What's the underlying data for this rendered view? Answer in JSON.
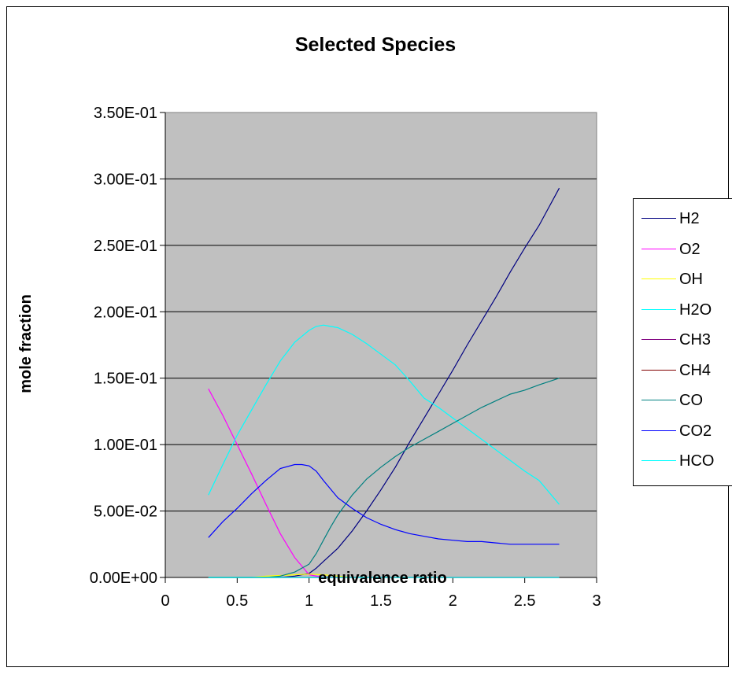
{
  "chart_data": {
    "type": "line",
    "title": "Selected Species",
    "xlabel": "equivalence ratio",
    "ylabel": "mole fraction",
    "xlim": [
      0,
      3
    ],
    "ylim": [
      0,
      0.35
    ],
    "x_ticks": [
      0,
      0.5,
      1,
      1.5,
      2,
      2.5,
      3
    ],
    "x_tick_labels": [
      "0",
      "0.5",
      "1",
      "1.5",
      "2",
      "2.5",
      "3"
    ],
    "y_ticks": [
      0,
      0.05,
      0.1,
      0.15,
      0.2,
      0.25,
      0.3,
      0.35
    ],
    "y_tick_labels": [
      "0.00E+00",
      "5.00E-02",
      "1.00E-01",
      "1.50E-01",
      "2.00E-01",
      "2.50E-01",
      "3.00E-01",
      "3.50E-01"
    ],
    "grid": "horizontal major",
    "plot_background": "#c0c0c0",
    "legend_position": "right",
    "series": [
      {
        "name": "H2",
        "color": "#000080",
        "x": [
          0.3,
          0.6,
          0.8,
          0.9,
          1.0,
          1.05,
          1.1,
          1.2,
          1.3,
          1.4,
          1.5,
          1.6,
          1.7,
          1.8,
          1.9,
          2.0,
          2.1,
          2.2,
          2.3,
          2.4,
          2.5,
          2.6,
          2.74
        ],
        "y": [
          0.0,
          0.0,
          0.0,
          0.001,
          0.003,
          0.007,
          0.012,
          0.022,
          0.035,
          0.05,
          0.066,
          0.083,
          0.102,
          0.12,
          0.138,
          0.156,
          0.175,
          0.193,
          0.211,
          0.23,
          0.248,
          0.265,
          0.293
        ]
      },
      {
        "name": "O2",
        "color": "#ff00ff",
        "x": [
          0.3,
          0.4,
          0.5,
          0.6,
          0.7,
          0.8,
          0.9,
          1.0,
          1.1,
          1.5,
          2.0,
          2.74
        ],
        "y": [
          0.142,
          0.122,
          0.1,
          0.078,
          0.055,
          0.033,
          0.015,
          0.002,
          0.0,
          0.0,
          0.0,
          0.0
        ]
      },
      {
        "name": "OH",
        "color": "#ffff00",
        "x": [
          0.3,
          0.6,
          0.7,
          0.8,
          0.9,
          1.0,
          1.1,
          1.2,
          1.3,
          1.5,
          2.0,
          2.74
        ],
        "y": [
          0.0,
          0.0,
          0.001,
          0.0015,
          0.002,
          0.0025,
          0.002,
          0.001,
          0.0,
          0.0,
          0.0,
          0.0
        ]
      },
      {
        "name": "H2O",
        "color": "#00ffff",
        "x": [
          0.3,
          0.4,
          0.5,
          0.6,
          0.7,
          0.8,
          0.9,
          1.0,
          1.05,
          1.1,
          1.15,
          1.2,
          1.3,
          1.4,
          1.5,
          1.6,
          1.7,
          1.8,
          1.9,
          2.0,
          2.1,
          2.2,
          2.3,
          2.4,
          2.5,
          2.6,
          2.74
        ],
        "y": [
          0.062,
          0.085,
          0.107,
          0.126,
          0.145,
          0.163,
          0.177,
          0.186,
          0.189,
          0.19,
          0.189,
          0.188,
          0.183,
          0.176,
          0.168,
          0.16,
          0.148,
          0.135,
          0.128,
          0.12,
          0.112,
          0.104,
          0.096,
          0.088,
          0.08,
          0.073,
          0.055
        ]
      },
      {
        "name": "CH3",
        "color": "#800080",
        "x": [
          0.3,
          1.0,
          2.0,
          2.74
        ],
        "y": [
          0.0,
          0.0,
          0.0,
          0.0
        ]
      },
      {
        "name": "CH4",
        "color": "#800000",
        "x": [
          0.3,
          1.0,
          2.0,
          2.74
        ],
        "y": [
          0.0,
          0.0,
          0.0,
          0.0
        ]
      },
      {
        "name": "CO",
        "color": "#008080",
        "x": [
          0.3,
          0.7,
          0.8,
          0.9,
          1.0,
          1.05,
          1.1,
          1.15,
          1.2,
          1.3,
          1.4,
          1.5,
          1.6,
          1.7,
          1.8,
          1.9,
          2.0,
          2.1,
          2.2,
          2.3,
          2.4,
          2.5,
          2.6,
          2.74
        ],
        "y": [
          0.0,
          0.0,
          0.001,
          0.004,
          0.01,
          0.018,
          0.028,
          0.038,
          0.047,
          0.062,
          0.074,
          0.083,
          0.091,
          0.098,
          0.104,
          0.11,
          0.116,
          0.122,
          0.128,
          0.133,
          0.138,
          0.141,
          0.145,
          0.15
        ]
      },
      {
        "name": "CO2",
        "color": "#0000ff",
        "x": [
          0.3,
          0.4,
          0.5,
          0.6,
          0.7,
          0.8,
          0.9,
          0.95,
          1.0,
          1.05,
          1.1,
          1.2,
          1.3,
          1.4,
          1.5,
          1.6,
          1.7,
          1.8,
          1.9,
          2.0,
          2.1,
          2.2,
          2.3,
          2.4,
          2.5,
          2.6,
          2.74
        ],
        "y": [
          0.03,
          0.042,
          0.052,
          0.063,
          0.073,
          0.082,
          0.085,
          0.085,
          0.084,
          0.08,
          0.073,
          0.06,
          0.052,
          0.045,
          0.04,
          0.036,
          0.033,
          0.031,
          0.029,
          0.028,
          0.027,
          0.027,
          0.026,
          0.025,
          0.025,
          0.025,
          0.025
        ]
      },
      {
        "name": "HCO",
        "color": "#00ffff",
        "x": [
          0.3,
          1.0,
          2.0,
          2.74
        ],
        "y": [
          0.0,
          0.0,
          0.0,
          0.0
        ]
      }
    ]
  }
}
